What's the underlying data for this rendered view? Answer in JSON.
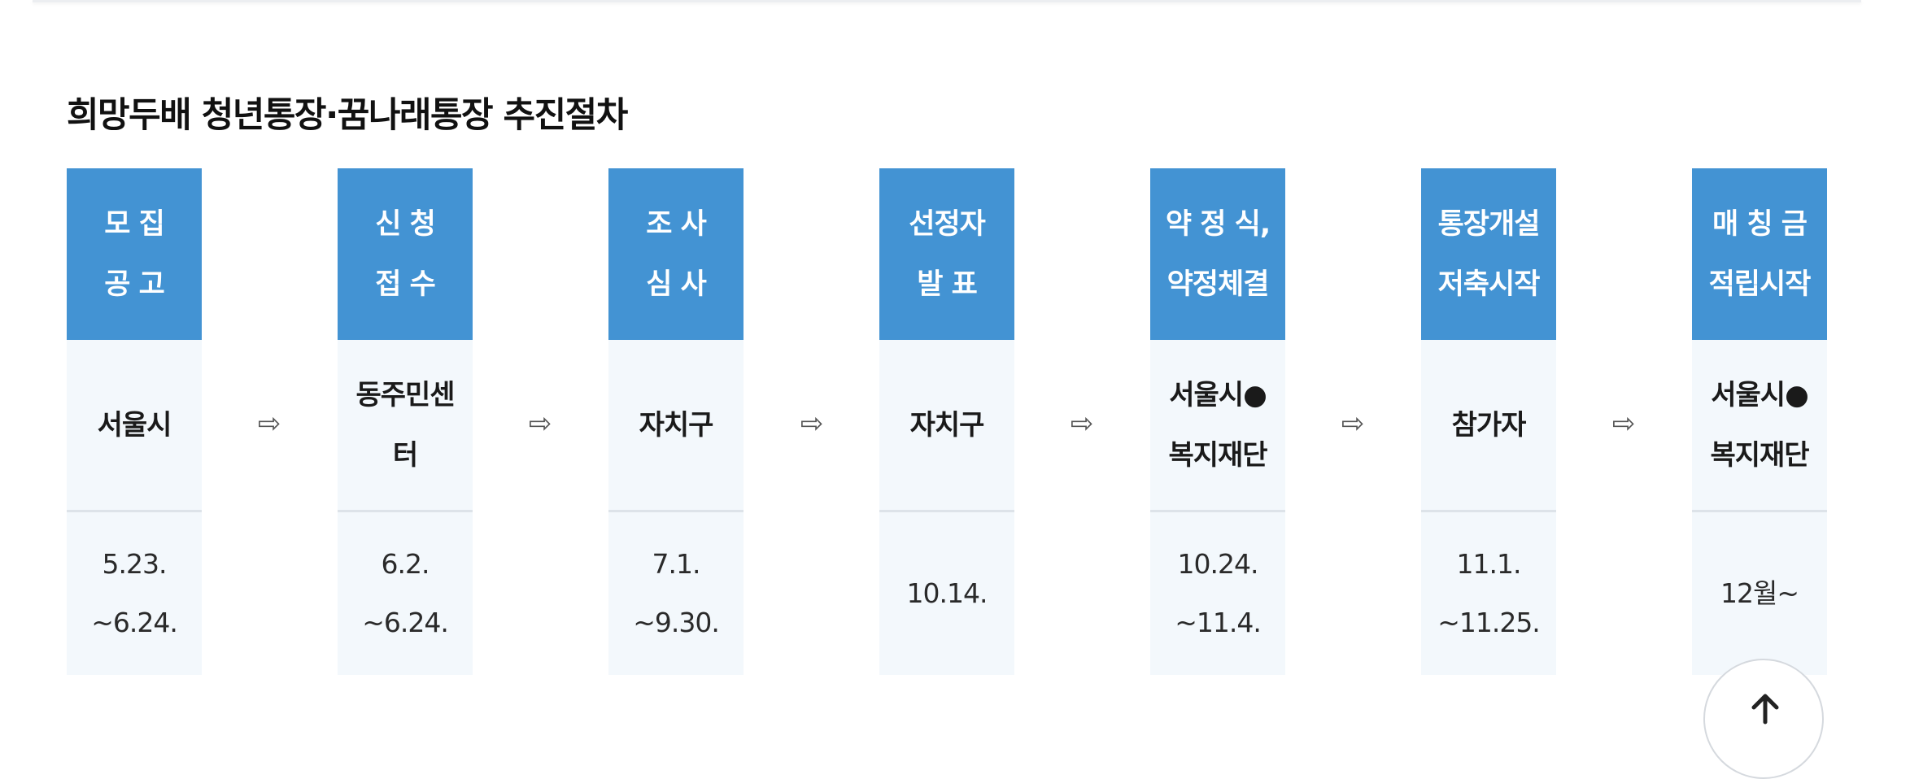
{
  "section": {
    "title": "희망두배 청년통장·꿈나래통장 추진절차"
  },
  "arrow_glyph": "⇨",
  "steps": [
    {
      "title": "모 집\n공 고",
      "org": "서울시",
      "date": "5.23.\n~6.24."
    },
    {
      "title": "신 청\n접 수",
      "org": "동주민센\n터",
      "date": "6.2.\n~6.24."
    },
    {
      "title": "조 사\n심 사",
      "org": "자치구",
      "date": "7.1.\n~9.30."
    },
    {
      "title": "선정자\n발 표",
      "org": "자치구",
      "date": "10.14."
    },
    {
      "title": "약 정 식,\n약정체결",
      "org": "서울시●\n복지재단",
      "date": "10.24.\n~11.4."
    },
    {
      "title": "통장개설\n저축시작",
      "org": "참가자",
      "date": "11.1.\n~11.25."
    },
    {
      "title": "매 칭 금\n적립시작",
      "org": "서울시●\n복지재단",
      "date": "12월~"
    }
  ],
  "colors": {
    "header_bg": "#4393d3",
    "cell_bg": "#f3f8fc",
    "separator": "#dde3e9"
  },
  "icons": {
    "arrow": "right-arrow-icon",
    "scroll_top": "arrow-up-icon"
  }
}
